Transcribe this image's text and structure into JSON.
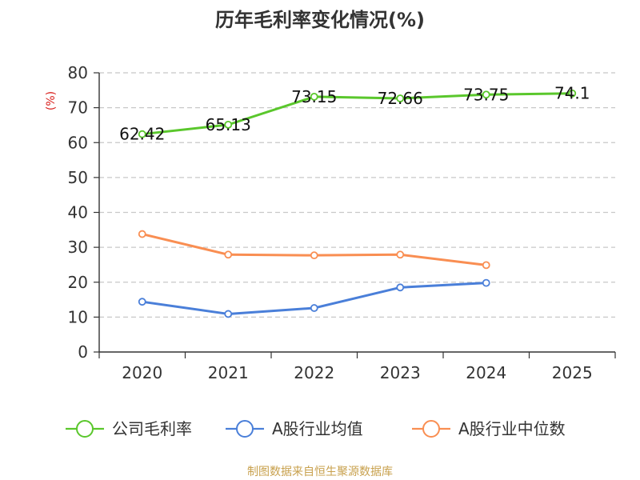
{
  "chart_data": {
    "type": "line",
    "title": "历年毛利率变化情况(%)",
    "ylabel": "(%)",
    "xlabel": "",
    "categories": [
      "2020",
      "2021",
      "2022",
      "2023",
      "2024",
      "2025"
    ],
    "ylim": [
      0,
      80
    ],
    "yticks": [
      0,
      10,
      20,
      30,
      40,
      50,
      60,
      70,
      80
    ],
    "grid": "horizontal-dashed",
    "legend_position": "bottom",
    "series": [
      {
        "name": "公司毛利率",
        "color": "#5ac72c",
        "values": [
          62.42,
          65.13,
          73.15,
          72.66,
          73.75,
          74.1
        ],
        "labels": [
          "62.42",
          "65.13",
          "73.15",
          "72.66",
          "73.75",
          "74.1"
        ]
      },
      {
        "name": "A股行业均值",
        "color": "#4a7fd9",
        "values": [
          14.4,
          10.9,
          12.6,
          18.5,
          19.8,
          null
        ]
      },
      {
        "name": "A股行业中位数",
        "color": "#f98e52",
        "values": [
          33.8,
          27.9,
          27.7,
          27.9,
          24.9,
          null
        ]
      }
    ]
  },
  "source_text": "制图数据来自恒生聚源数据库",
  "colors": {
    "source": "#c8a14e",
    "ylabel": "#d9201d",
    "axis": "#333333",
    "grid": "#c8c8c8"
  }
}
